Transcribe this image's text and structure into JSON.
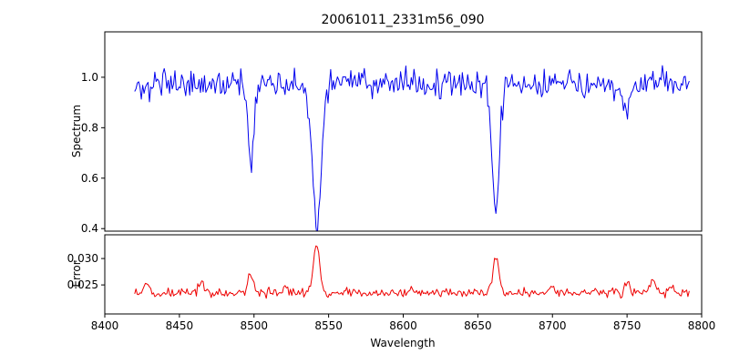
{
  "chart_data": {
    "type": "line",
    "title": "20061011_2331m56_090",
    "xlabel": "Wavelength",
    "xlim": [
      8400,
      8800
    ],
    "xticks": [
      8400,
      8450,
      8500,
      8550,
      8600,
      8650,
      8700,
      8750,
      8800
    ],
    "xtick_labels": [
      "8400",
      "8450",
      "8500",
      "8550",
      "8600",
      "8650",
      "8700",
      "8750",
      "8800"
    ],
    "x_data_range": [
      8420,
      8792
    ],
    "x_step": 0.9,
    "grid": false,
    "legend": "none",
    "subplots": [
      {
        "name": "spectrum",
        "ylabel": "Spectrum",
        "color": "#0000ee",
        "ylim": [
          0.39,
          1.18
        ],
        "yticks": [
          0.4,
          0.6,
          0.8,
          1.0
        ],
        "ytick_labels": [
          "0.4",
          "0.6",
          "0.8",
          "1.0"
        ],
        "baseline": 0.975,
        "noise_amplitude": 0.055,
        "features": [
          {
            "type": "absorption",
            "center": 8498,
            "depth": 0.35,
            "width": 1.8
          },
          {
            "type": "absorption",
            "center": 8542,
            "depth": 0.56,
            "width": 3.0
          },
          {
            "type": "absorption",
            "center": 8662,
            "depth": 0.47,
            "width": 2.4
          },
          {
            "type": "absorption",
            "center": 8750,
            "depth": 0.14,
            "width": 2.0
          }
        ]
      },
      {
        "name": "error",
        "ylabel": "Error",
        "color": "#ee0000",
        "ylim": [
          0.0195,
          0.0345
        ],
        "yticks": [
          0.025,
          0.03
        ],
        "ytick_labels": [
          "0.025",
          "0.030"
        ],
        "baseline": 0.0235,
        "noise_amplitude": 0.0009,
        "features": [
          {
            "type": "emission",
            "center": 8428,
            "depth": 0.0018,
            "width": 1.5
          },
          {
            "type": "emission",
            "center": 8465,
            "depth": 0.0022,
            "width": 1.5
          },
          {
            "type": "emission",
            "center": 8498,
            "depth": 0.0038,
            "width": 1.8
          },
          {
            "type": "emission",
            "center": 8520,
            "depth": 0.001,
            "width": 1.5
          },
          {
            "type": "emission",
            "center": 8542,
            "depth": 0.0095,
            "width": 2.0
          },
          {
            "type": "emission",
            "center": 8605,
            "depth": 0.001,
            "width": 1.5
          },
          {
            "type": "emission",
            "center": 8662,
            "depth": 0.0068,
            "width": 2.0
          },
          {
            "type": "emission",
            "center": 8700,
            "depth": 0.0012,
            "width": 1.5
          },
          {
            "type": "emission",
            "center": 8750,
            "depth": 0.0018,
            "width": 1.5
          },
          {
            "type": "emission",
            "center": 8767,
            "depth": 0.0025,
            "width": 2.0
          },
          {
            "type": "emission",
            "center": 8780,
            "depth": 0.0015,
            "width": 1.5
          }
        ]
      }
    ]
  }
}
